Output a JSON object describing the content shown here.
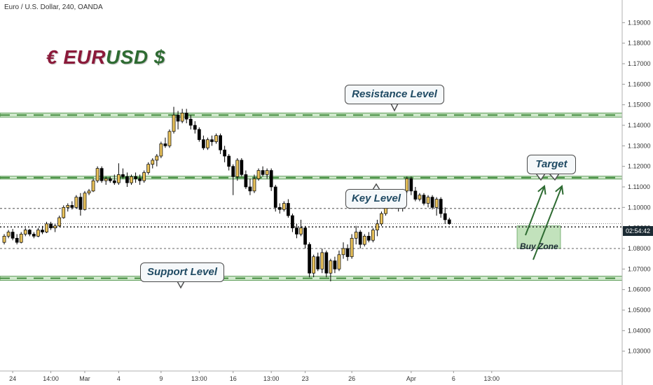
{
  "header": "Euro / U.S. Dollar, 240, OANDA",
  "logo": {
    "euro_sign": "€",
    "eur": "EUR",
    "usd": "USD",
    "dollar_sign": "$"
  },
  "annotations": {
    "resistance": "Resistance Level",
    "key": "Key Level",
    "support": "Support Level",
    "target": "Target",
    "buy_zone": "Buy Zone"
  },
  "current_price_label": "02:54:42",
  "colors": {
    "bull": "#e8c15a",
    "bear": "#000000",
    "zone_fill": "#a8d5a0",
    "zone_dash": "#3f8a3a",
    "arrow": "#2e6b32",
    "logo_eur": "#8b1a3a",
    "logo_usd": "#2e6b32"
  },
  "chart_data": {
    "type": "candlestick",
    "symbol": "EURUSD",
    "timeframe": "240",
    "broker": "OANDA",
    "ylim": [
      1.02,
      1.2
    ],
    "yticks": [
      1.19,
      1.18,
      1.17,
      1.16,
      1.15,
      1.14,
      1.13,
      1.12,
      1.11,
      1.1,
      1.09,
      1.08,
      1.07,
      1.06,
      1.05,
      1.04,
      1.03
    ],
    "ytick_labels": [
      "1.19000",
      "1.18000",
      "1.17000",
      "1.16000",
      "1.15000",
      "1.14000",
      "1.13000",
      "1.12000",
      "1.11000",
      "1.10000",
      "1.09000",
      "1.08000",
      "1.07000",
      "1.06000",
      "1.05000",
      "1.04000",
      "1.03000"
    ],
    "xticks": [
      {
        "label": "24",
        "bar": 2
      },
      {
        "label": "14:00",
        "bar": 11
      },
      {
        "label": "Mar",
        "bar": 19
      },
      {
        "label": "4",
        "bar": 27
      },
      {
        "label": "9",
        "bar": 37
      },
      {
        "label": "13:00",
        "bar": 46
      },
      {
        "label": "16",
        "bar": 54
      },
      {
        "label": "13:00",
        "bar": 63
      },
      {
        "label": "23",
        "bar": 71
      },
      {
        "label": "26",
        "bar": 82
      },
      {
        "label": "Apr",
        "bar": 96
      },
      {
        "label": "6",
        "bar": 106
      },
      {
        "label": "13:00",
        "bar": 115
      }
    ],
    "levels": [
      {
        "name": "Resistance Level",
        "price": 1.145,
        "band": [
          1.144,
          1.146
        ]
      },
      {
        "name": "Key Level",
        "price": 1.1145,
        "band": [
          1.1138,
          1.1152
        ]
      },
      {
        "name": "Support Level",
        "price": 1.0655,
        "band": [
          1.0645,
          1.0665
        ]
      }
    ],
    "horizontal_lines": [
      1.0995,
      1.0905,
      1.08
    ],
    "current_price": 1.0921,
    "buy_zone": [
      1.08,
      1.091
    ],
    "candles": [
      [
        1.083,
        1.087,
        1.082,
        1.086
      ],
      [
        1.086,
        1.089,
        1.085,
        1.088
      ],
      [
        1.088,
        1.0895,
        1.084,
        1.085
      ],
      [
        1.085,
        1.087,
        1.082,
        1.083
      ],
      [
        1.083,
        1.088,
        1.0825,
        1.087
      ],
      [
        1.087,
        1.09,
        1.086,
        1.089
      ],
      [
        1.089,
        1.0895,
        1.086,
        1.087
      ],
      [
        1.087,
        1.088,
        1.085,
        1.086
      ],
      [
        1.086,
        1.09,
        1.0855,
        1.089
      ],
      [
        1.089,
        1.091,
        1.087,
        1.088
      ],
      [
        1.088,
        1.093,
        1.0875,
        1.092
      ],
      [
        1.092,
        1.093,
        1.089,
        1.09
      ],
      [
        1.09,
        1.092,
        1.088,
        1.091
      ],
      [
        1.091,
        1.096,
        1.0905,
        1.095
      ],
      [
        1.095,
        1.101,
        1.0945,
        1.1
      ],
      [
        1.1,
        1.102,
        1.098,
        1.101
      ],
      [
        1.101,
        1.103,
        1.099,
        1.1
      ],
      [
        1.1,
        1.106,
        1.0995,
        1.105
      ],
      [
        1.105,
        1.107,
        1.096,
        1.099
      ],
      [
        1.099,
        1.108,
        1.0985,
        1.107
      ],
      [
        1.107,
        1.109,
        1.106,
        1.108
      ],
      [
        1.108,
        1.114,
        1.1075,
        1.113
      ],
      [
        1.113,
        1.12,
        1.112,
        1.119
      ],
      [
        1.119,
        1.12,
        1.112,
        1.113
      ],
      [
        1.113,
        1.115,
        1.111,
        1.114
      ],
      [
        1.114,
        1.115,
        1.112,
        1.113
      ],
      [
        1.113,
        1.116,
        1.111,
        1.112
      ],
      [
        1.112,
        1.1215,
        1.111,
        1.116
      ],
      [
        1.116,
        1.119,
        1.114,
        1.115
      ],
      [
        1.115,
        1.117,
        1.11,
        1.112
      ],
      [
        1.112,
        1.116,
        1.111,
        1.115
      ],
      [
        1.115,
        1.117,
        1.112,
        1.114
      ],
      [
        1.114,
        1.116,
        1.111,
        1.113
      ],
      [
        1.113,
        1.118,
        1.112,
        1.117
      ],
      [
        1.117,
        1.122,
        1.116,
        1.121
      ],
      [
        1.121,
        1.124,
        1.119,
        1.123
      ],
      [
        1.123,
        1.126,
        1.12,
        1.125
      ],
      [
        1.125,
        1.132,
        1.124,
        1.131
      ],
      [
        1.131,
        1.134,
        1.129,
        1.13
      ],
      [
        1.13,
        1.138,
        1.129,
        1.137
      ],
      [
        1.137,
        1.149,
        1.136,
        1.145
      ],
      [
        1.145,
        1.147,
        1.138,
        1.142
      ],
      [
        1.142,
        1.148,
        1.141,
        1.146
      ],
      [
        1.146,
        1.148,
        1.141,
        1.143
      ],
      [
        1.143,
        1.145,
        1.138,
        1.14
      ],
      [
        1.14,
        1.142,
        1.136,
        1.138
      ],
      [
        1.138,
        1.139,
        1.132,
        1.133
      ],
      [
        1.133,
        1.135,
        1.128,
        1.129
      ],
      [
        1.129,
        1.134,
        1.128,
        1.133
      ],
      [
        1.133,
        1.135,
        1.13,
        1.132
      ],
      [
        1.132,
        1.136,
        1.131,
        1.135
      ],
      [
        1.135,
        1.136,
        1.126,
        1.128
      ],
      [
        1.128,
        1.13,
        1.122,
        1.125
      ],
      [
        1.125,
        1.126,
        1.118,
        1.12
      ],
      [
        1.12,
        1.121,
        1.106,
        1.115
      ],
      [
        1.115,
        1.124,
        1.113,
        1.123
      ],
      [
        1.123,
        1.124,
        1.115,
        1.116
      ],
      [
        1.116,
        1.118,
        1.109,
        1.11
      ],
      [
        1.11,
        1.114,
        1.106,
        1.108
      ],
      [
        1.108,
        1.116,
        1.107,
        1.114
      ],
      [
        1.114,
        1.119,
        1.113,
        1.118
      ],
      [
        1.118,
        1.12,
        1.115,
        1.116
      ],
      [
        1.116,
        1.119,
        1.114,
        1.118
      ],
      [
        1.118,
        1.119,
        1.108,
        1.11
      ],
      [
        1.11,
        1.111,
        1.098,
        1.1
      ],
      [
        1.1,
        1.102,
        1.097,
        1.099
      ],
      [
        1.099,
        1.103,
        1.098,
        1.102
      ],
      [
        1.102,
        1.104,
        1.095,
        1.096
      ],
      [
        1.096,
        1.097,
        1.088,
        1.09
      ],
      [
        1.09,
        1.092,
        1.085,
        1.087
      ],
      [
        1.087,
        1.094,
        1.086,
        1.09
      ],
      [
        1.09,
        1.091,
        1.08,
        1.082
      ],
      [
        1.082,
        1.083,
        1.066,
        1.068
      ],
      [
        1.068,
        1.077,
        1.066,
        1.076
      ],
      [
        1.076,
        1.078,
        1.069,
        1.07
      ],
      [
        1.07,
        1.08,
        1.068,
        1.078
      ],
      [
        1.078,
        1.079,
        1.066,
        1.068
      ],
      [
        1.068,
        1.075,
        1.064,
        1.074
      ],
      [
        1.074,
        1.076,
        1.068,
        1.07
      ],
      [
        1.07,
        1.079,
        1.069,
        1.077
      ],
      [
        1.077,
        1.083,
        1.075,
        1.08
      ],
      [
        1.08,
        1.082,
        1.074,
        1.076
      ],
      [
        1.076,
        1.087,
        1.075,
        1.085
      ],
      [
        1.085,
        1.091,
        1.082,
        1.088
      ],
      [
        1.088,
        1.089,
        1.08,
        1.082
      ],
      [
        1.082,
        1.087,
        1.081,
        1.086
      ],
      [
        1.086,
        1.088,
        1.083,
        1.084
      ],
      [
        1.084,
        1.09,
        1.083,
        1.089
      ],
      [
        1.089,
        1.094,
        1.086,
        1.092
      ],
      [
        1.092,
        1.098,
        1.091,
        1.097
      ],
      [
        1.097,
        1.104,
        1.096,
        1.103
      ],
      [
        1.103,
        1.106,
        1.102,
        1.105
      ],
      [
        1.105,
        1.107,
        1.103,
        1.106
      ],
      [
        1.106,
        1.108,
        1.098,
        1.1
      ],
      [
        1.1,
        1.109,
        1.098,
        1.108
      ],
      [
        1.108,
        1.115,
        1.107,
        1.114
      ],
      [
        1.114,
        1.115,
        1.106,
        1.108
      ],
      [
        1.108,
        1.11,
        1.103,
        1.104
      ],
      [
        1.104,
        1.107,
        1.103,
        1.106
      ],
      [
        1.106,
        1.107,
        1.101,
        1.102
      ],
      [
        1.102,
        1.106,
        1.1,
        1.105
      ],
      [
        1.105,
        1.106,
        1.099,
        1.1
      ],
      [
        1.1,
        1.105,
        1.096,
        1.104
      ],
      [
        1.104,
        1.105,
        1.095,
        1.097
      ],
      [
        1.097,
        1.1,
        1.092,
        1.094
      ],
      [
        1.094,
        1.095,
        1.0915,
        1.0921
      ]
    ]
  }
}
